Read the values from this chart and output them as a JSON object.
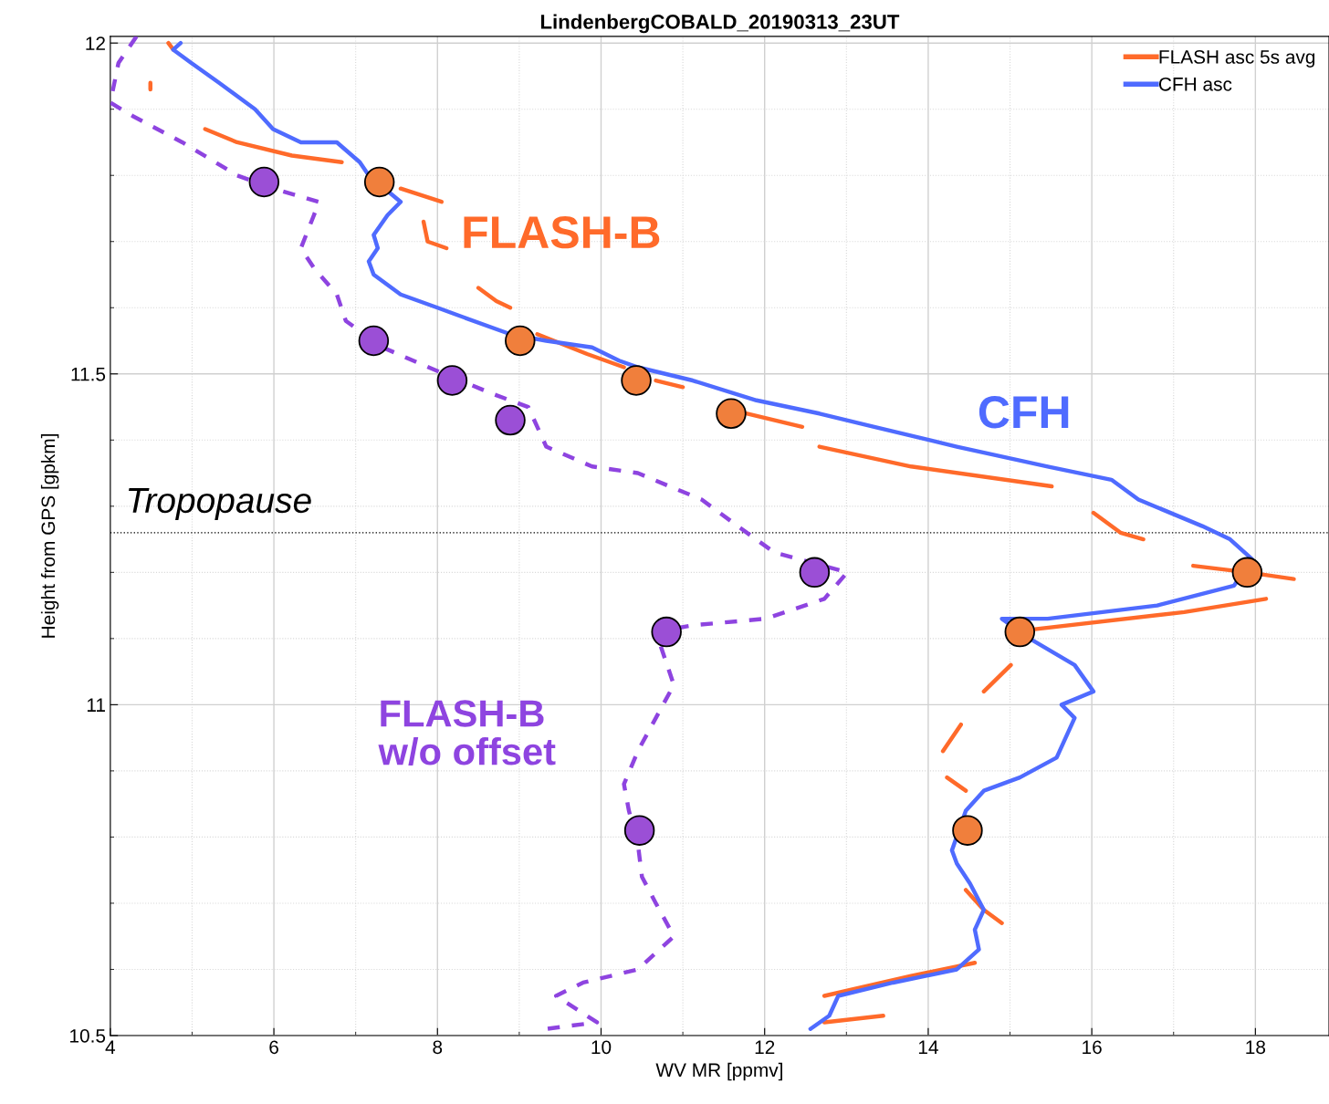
{
  "chart_data": {
    "type": "line",
    "title": "LindenbergCOBALD_20190313_23UT",
    "xlabel": "WV MR [ppmv]",
    "ylabel": "Height from GPS [gpkm]",
    "xlim": [
      4,
      18.9
    ],
    "xticks": [
      4,
      6,
      8,
      10,
      12,
      14,
      16,
      18
    ],
    "ylim": [
      10.5,
      12.01
    ],
    "yticks": [
      10.5,
      11,
      11.5,
      12
    ],
    "grid": true,
    "legend": "top right",
    "series": [
      {
        "name": "FLASH asc 5s avg",
        "color": "#ff6a2a",
        "x": [
          4.71,
          4.77,
          null,
          4.49,
          4.49,
          null,
          5.16,
          5.55,
          6.22,
          6.83,
          null,
          7.55,
          8.05,
          null,
          7.83,
          7.88,
          8.11,
          null,
          8.5,
          8.72,
          8.89,
          null,
          9.22,
          9.83,
          10.28,
          null,
          10.67,
          11.0,
          null,
          11.45,
          12.46,
          null,
          12.67,
          13.79,
          15.51,
          null,
          16.02,
          16.35,
          16.63,
          null,
          17.24,
          17.91,
          18.47,
          null,
          18.13,
          17.13,
          15.01,
          null,
          15.01,
          14.68,
          null,
          14.4,
          14.18,
          null,
          14.23,
          14.46,
          null,
          14.46,
          14.68,
          14.9,
          null,
          12.73,
          13.79,
          14.57,
          null,
          12.73,
          13.45
        ],
        "values": [
          12.0,
          11.99,
          null,
          11.94,
          11.93,
          null,
          11.87,
          11.85,
          11.83,
          11.82,
          null,
          11.78,
          11.76,
          null,
          11.73,
          11.7,
          11.69,
          null,
          11.63,
          11.61,
          11.6,
          null,
          11.56,
          11.53,
          11.51,
          null,
          11.49,
          11.48,
          null,
          11.45,
          11.42,
          null,
          11.39,
          11.36,
          11.33,
          null,
          11.29,
          11.26,
          11.25,
          null,
          11.21,
          11.2,
          11.19,
          null,
          11.16,
          11.14,
          11.11,
          null,
          11.06,
          11.02,
          null,
          10.97,
          10.93,
          null,
          10.89,
          10.87,
          null,
          10.72,
          10.69,
          10.67,
          null,
          10.56,
          10.59,
          10.61,
          null,
          10.52,
          10.53
        ]
      },
      {
        "name": "CFH asc",
        "color": "#4f6bff",
        "x": [
          4.86,
          4.77,
          4.99,
          5.33,
          5.77,
          5.99,
          6.33,
          6.77,
          7.05,
          7.16,
          7.55,
          7.39,
          7.22,
          7.27,
          7.16,
          7.22,
          7.55,
          8.0,
          8.22,
          8.89,
          9.33,
          9.89,
          10.22,
          10.45,
          11.12,
          11.9,
          12.67,
          13.34,
          14.35,
          15.46,
          16.24,
          16.57,
          17.35,
          17.69,
          17.96,
          17.74,
          16.8,
          15.46,
          14.9,
          15.24,
          15.79,
          16.02,
          15.63,
          15.79,
          15.57,
          15.12,
          14.68,
          14.46,
          14.29,
          14.35,
          14.51,
          14.68,
          14.57,
          14.62,
          14.35,
          13.57,
          12.9,
          12.79,
          12.56
        ],
        "values": [
          12.0,
          11.99,
          11.97,
          11.94,
          11.9,
          11.87,
          11.85,
          11.85,
          11.82,
          11.8,
          11.76,
          11.74,
          11.71,
          11.69,
          11.67,
          11.65,
          11.62,
          11.6,
          11.59,
          11.56,
          11.55,
          11.54,
          11.52,
          11.51,
          11.49,
          11.46,
          11.44,
          11.42,
          11.39,
          11.36,
          11.34,
          11.31,
          11.27,
          11.25,
          11.22,
          11.18,
          11.15,
          11.13,
          11.13,
          11.1,
          11.06,
          11.02,
          11.0,
          10.98,
          10.92,
          10.89,
          10.87,
          10.84,
          10.78,
          10.76,
          10.73,
          10.69,
          10.66,
          10.63,
          10.6,
          10.58,
          10.56,
          10.53,
          10.51
        ]
      },
      {
        "color": "#8e44e0",
        "line_style": "dashed",
        "x": [
          4.32,
          4.1,
          4.0,
          4.27,
          4.88,
          5.55,
          5.99,
          6.55,
          6.49,
          6.33,
          6.49,
          6.77,
          6.88,
          7.33,
          7.89,
          8.67,
          9.11,
          9.33,
          9.89,
          10.45,
          11.23,
          11.67,
          12.12,
          13.01,
          12.73,
          12.01,
          11.12,
          10.67,
          10.78,
          10.89,
          10.67,
          10.45,
          10.28,
          10.34,
          10.45,
          10.5,
          10.67,
          10.89,
          10.45,
          9.78,
          9.45,
          9.95,
          9.33,
          9.28
        ],
        "values": [
          12.01,
          11.97,
          11.91,
          11.89,
          11.85,
          11.8,
          11.78,
          11.76,
          11.74,
          11.69,
          11.66,
          11.62,
          11.58,
          11.54,
          11.51,
          11.47,
          11.45,
          11.39,
          11.36,
          11.35,
          11.31,
          11.27,
          11.23,
          11.2,
          11.16,
          11.13,
          11.12,
          11.11,
          11.07,
          11.03,
          10.98,
          10.93,
          10.88,
          10.84,
          10.79,
          10.74,
          10.7,
          10.65,
          10.6,
          10.58,
          10.56,
          10.52,
          10.51,
          10.5
        ]
      },
      {
        "type": "scatter",
        "color": "#9b4fd6",
        "marker": "circle",
        "x": [
          5.88,
          7.22,
          8.18,
          8.89,
          12.61,
          10.8,
          10.47
        ],
        "values": [
          11.79,
          11.55,
          11.49,
          11.43,
          11.2,
          11.11,
          10.81
        ]
      },
      {
        "type": "scatter",
        "color": "#f07f3c",
        "marker": "circle",
        "x": [
          7.29,
          9.01,
          10.43,
          11.59,
          17.9,
          15.12,
          14.48
        ],
        "values": [
          11.79,
          11.55,
          11.49,
          11.44,
          11.2,
          11.11,
          10.81
        ]
      }
    ],
    "ref_lines": [
      {
        "axis": "y",
        "value": 11.26,
        "label": "Tropopause",
        "color": "#000000",
        "line_style": "dotted"
      }
    ],
    "annotations": [
      "FLASH-B",
      "CFH",
      "FLASH-B\nw/o offset"
    ]
  }
}
